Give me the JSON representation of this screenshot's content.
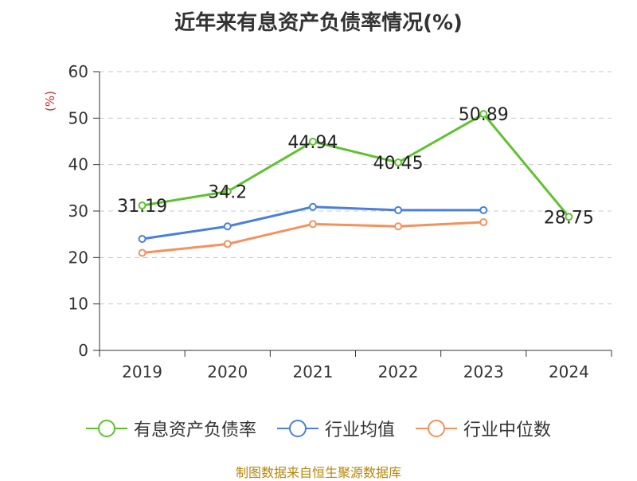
{
  "page": {
    "title": "近年来有息资产负债率情况(%)",
    "source": "制图数据来自恒生聚源数据库"
  },
  "chart_data": {
    "type": "line",
    "title": "近年来有息资产负债率情况(%)",
    "ylabel": "(%)",
    "xlabel": "",
    "ylim": [
      0,
      60
    ],
    "yticks": [
      "0",
      "10",
      "20",
      "30",
      "40",
      "50",
      "60"
    ],
    "categories": [
      "2019",
      "2020",
      "2021",
      "2022",
      "2023",
      "2024"
    ],
    "grid": "horizontal-dashed",
    "legend_position": "bottom",
    "series": [
      {
        "name": "有息资产负债率",
        "color": "#5ec22f",
        "values": [
          31.19,
          34.2,
          44.94,
          40.45,
          50.89,
          28.75
        ],
        "labels": [
          "31.19",
          "34.2",
          "44.94",
          "40.45",
          "50.89",
          "28.75"
        ]
      },
      {
        "name": "行业均值",
        "color": "#4a7fdb",
        "values": [
          24.0,
          26.7,
          30.9,
          30.2,
          30.2,
          null
        ]
      },
      {
        "name": "行业中位数",
        "color": "#f5915b",
        "values": [
          21.0,
          22.9,
          27.2,
          26.7,
          27.6,
          null
        ]
      }
    ]
  }
}
